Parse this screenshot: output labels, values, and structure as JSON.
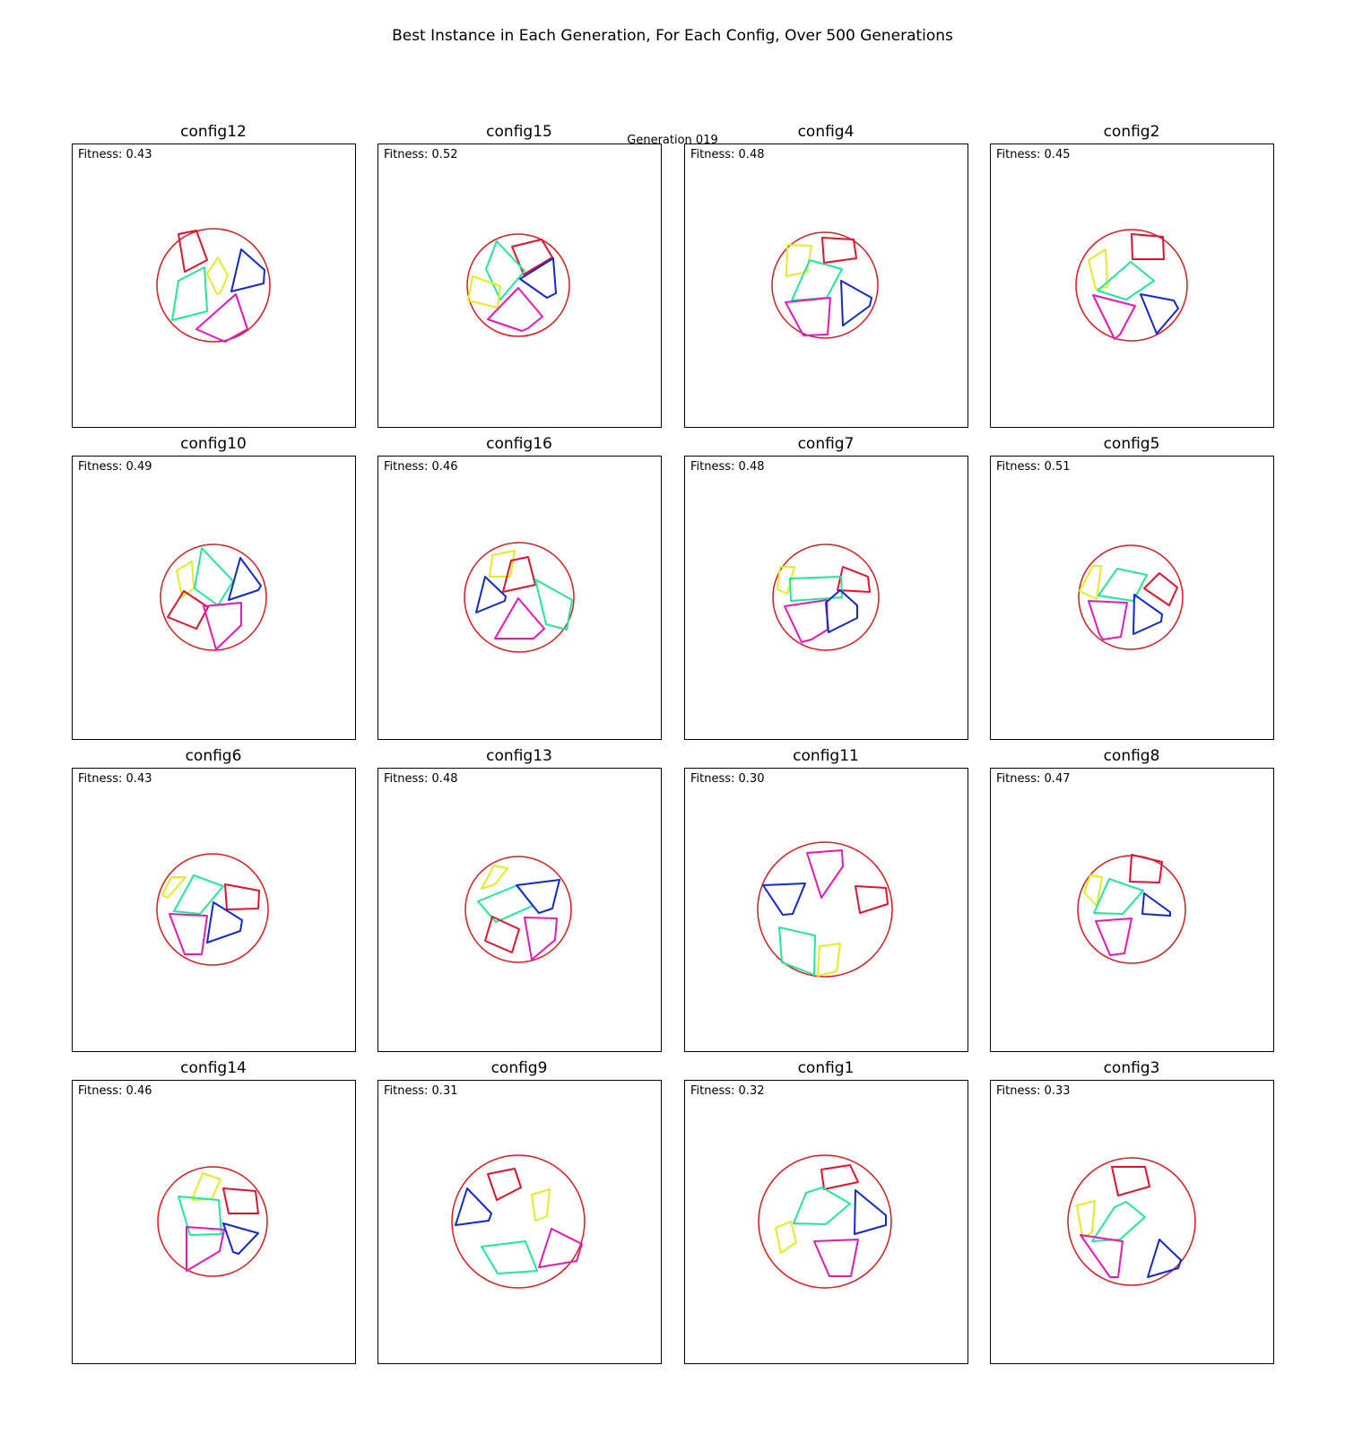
{
  "title": "Best Instance in Each Generation, For Each Config, Over 500 Generations",
  "generation_label": "Generation 019",
  "colors": {
    "red": "#e3122e",
    "yellow": "#e2ee24",
    "green": "#22e89a",
    "blue": "#1328d0",
    "magenta": "#ea17b8",
    "circle": "#e0191f",
    "frame": "#000000"
  },
  "panels": [
    {
      "title": "config12",
      "fitness_label": "Fitness: 0.43"
    },
    {
      "title": "config15",
      "fitness_label": "Fitness: 0.52"
    },
    {
      "title": "config4",
      "fitness_label": "Fitness: 0.48"
    },
    {
      "title": "config2",
      "fitness_label": "Fitness: 0.45"
    },
    {
      "title": "config10",
      "fitness_label": "Fitness: 0.49"
    },
    {
      "title": "config16",
      "fitness_label": "Fitness: 0.46"
    },
    {
      "title": "config7",
      "fitness_label": "Fitness: 0.48"
    },
    {
      "title": "config5",
      "fitness_label": "Fitness: 0.51"
    },
    {
      "title": "config6",
      "fitness_label": "Fitness: 0.43"
    },
    {
      "title": "config13",
      "fitness_label": "Fitness: 0.48"
    },
    {
      "title": "config11",
      "fitness_label": "Fitness: 0.30"
    },
    {
      "title": "config8",
      "fitness_label": "Fitness: 0.47"
    },
    {
      "title": "config14",
      "fitness_label": "Fitness: 0.46"
    },
    {
      "title": "config9",
      "fitness_label": "Fitness: 0.31"
    },
    {
      "title": "config1",
      "fitness_label": "Fitness: 0.32"
    },
    {
      "title": "config3",
      "fitness_label": "Fitness: 0.33"
    }
  ]
}
